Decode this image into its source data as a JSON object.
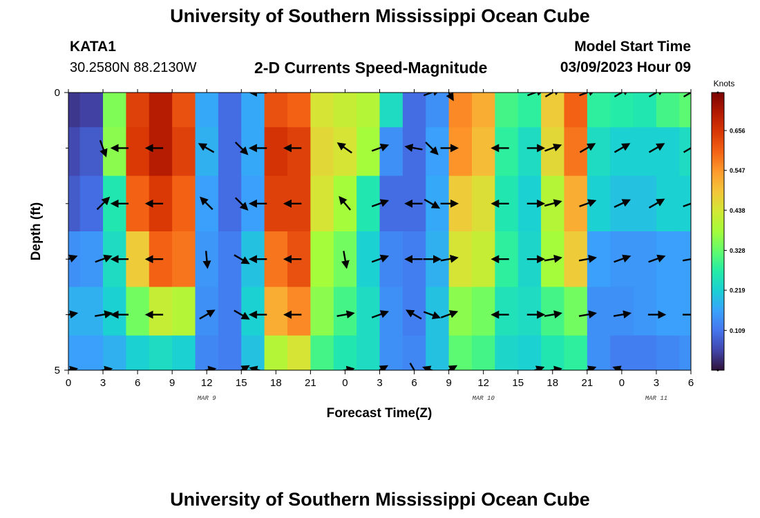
{
  "header": {
    "title": "University of Southern Mississippi Ocean Cube",
    "station": "KATA1",
    "coords": "30.2580N  88.2130W",
    "subtitle": "2-D Currents Speed-Magnitude",
    "model_start_label": "Model Start Time",
    "model_start_value": "03/09/2023 Hour 09"
  },
  "footer": {
    "title": "University of Southern Mississippi Ocean Cube"
  },
  "colors": {
    "ramp": [
      "#30123b",
      "#4145ab",
      "#4675ed",
      "#39a2fc",
      "#1bcfd4",
      "#24eca6",
      "#61fc6c",
      "#a4fc3b",
      "#d1e834",
      "#f3c63a",
      "#fe9b2d",
      "#f36315",
      "#d93806",
      "#b11901",
      "#7a0403"
    ],
    "arrow": "#000000",
    "axis": "#000000"
  },
  "chart_data": {
    "type": "heatmap",
    "title": "2-D Currents Speed-Magnitude",
    "xlabel": "Forecast Time(Z)",
    "ylabel": "Depth (ft)",
    "colorbar_label": "Knots",
    "colorbar_ticks": [
      "0.109",
      "0.219",
      "0.328",
      "0.438",
      "0.547",
      "0.656"
    ],
    "colorbar_range": [
      0,
      0.76
    ],
    "xlim": [
      0,
      54
    ],
    "ylim": [
      0,
      5
    ],
    "x_ticks": [
      0,
      3,
      6,
      9,
      12,
      15,
      18,
      21,
      24,
      27,
      30,
      33,
      36,
      39,
      42,
      45,
      48,
      51,
      54
    ],
    "x_tick_labels": [
      "0",
      "3",
      "6",
      "9",
      "12",
      "15",
      "18",
      "21",
      "0",
      "3",
      "6",
      "9",
      "12",
      "15",
      "18",
      "21",
      "0",
      "3",
      "6"
    ],
    "y_tick_labels": [
      {
        "value": 0,
        "label": "0"
      },
      {
        "value": 5,
        "label": "5"
      }
    ],
    "y_minor_ticks": [
      1,
      2,
      3,
      4
    ],
    "date_labels": [
      {
        "x": 12,
        "label": "MAR 9"
      },
      {
        "x": 36,
        "label": "MAR 10"
      },
      {
        "x": 51,
        "label": "MAR 11"
      }
    ],
    "depth_rows": [
      0.25,
      1,
      2,
      3,
      4,
      4.75
    ],
    "time_columns": [
      0,
      2,
      4,
      6,
      8,
      10,
      12,
      14,
      16,
      18,
      20,
      22,
      24,
      26,
      28,
      30,
      32,
      34,
      36,
      38,
      40,
      42,
      44,
      46,
      48,
      50,
      52,
      54
    ],
    "speed_knots": [
      [
        0.04,
        0.05,
        0.35,
        0.64,
        0.7,
        0.62,
        0.17,
        0.1,
        0.17,
        0.62,
        0.6,
        0.44,
        0.42,
        0.4,
        0.24,
        0.1,
        0.14,
        0.56,
        0.52,
        0.3,
        0.28,
        0.48,
        0.6,
        0.28,
        0.27,
        0.26,
        0.3,
        0.32
      ],
      [
        0.06,
        0.08,
        0.36,
        0.65,
        0.7,
        0.64,
        0.18,
        0.1,
        0.17,
        0.66,
        0.64,
        0.46,
        0.44,
        0.38,
        0.14,
        0.1,
        0.16,
        0.55,
        0.5,
        0.28,
        0.24,
        0.46,
        0.58,
        0.24,
        0.22,
        0.22,
        0.22,
        0.24
      ],
      [
        0.08,
        0.1,
        0.26,
        0.6,
        0.65,
        0.6,
        0.16,
        0.1,
        0.16,
        0.64,
        0.64,
        0.44,
        0.38,
        0.26,
        0.1,
        0.1,
        0.17,
        0.48,
        0.45,
        0.26,
        0.22,
        0.4,
        0.52,
        0.22,
        0.2,
        0.2,
        0.22,
        0.22
      ],
      [
        0.14,
        0.15,
        0.24,
        0.48,
        0.6,
        0.58,
        0.15,
        0.12,
        0.2,
        0.58,
        0.62,
        0.38,
        0.34,
        0.22,
        0.13,
        0.12,
        0.18,
        0.44,
        0.42,
        0.28,
        0.23,
        0.38,
        0.48,
        0.16,
        0.15,
        0.15,
        0.16,
        0.16
      ],
      [
        0.18,
        0.18,
        0.22,
        0.34,
        0.42,
        0.4,
        0.14,
        0.12,
        0.22,
        0.52,
        0.56,
        0.36,
        0.3,
        0.24,
        0.14,
        0.12,
        0.2,
        0.36,
        0.34,
        0.25,
        0.24,
        0.3,
        0.34,
        0.14,
        0.14,
        0.15,
        0.16,
        0.16
      ],
      [
        0.16,
        0.16,
        0.18,
        0.22,
        0.24,
        0.22,
        0.13,
        0.12,
        0.2,
        0.4,
        0.44,
        0.3,
        0.26,
        0.24,
        0.14,
        0.13,
        0.2,
        0.32,
        0.3,
        0.23,
        0.22,
        0.26,
        0.28,
        0.14,
        0.12,
        0.12,
        0.13,
        0.14
      ]
    ],
    "vector_times": [
      0,
      3,
      4.5,
      7.5,
      12,
      15,
      16.5,
      19.5,
      24,
      27,
      30,
      31.5,
      33,
      37.5,
      40.5,
      42,
      45,
      48,
      51,
      54
    ],
    "vector_depths": [
      0,
      1,
      2,
      3,
      4,
      5
    ],
    "vector_angles_deg": [
      [
        null,
        null,
        null,
        null,
        null,
        null,
        180,
        null,
        null,
        null,
        null,
        20,
        -60,
        null,
        20,
        30,
        20,
        30,
        30,
        30
      ],
      [
        null,
        -70,
        180,
        180,
        150,
        -45,
        180,
        180,
        145,
        20,
        170,
        -45,
        0,
        180,
        0,
        20,
        30,
        30,
        30,
        30
      ],
      [
        null,
        45,
        180,
        180,
        135,
        -45,
        180,
        180,
        130,
        20,
        180,
        -30,
        0,
        180,
        0,
        15,
        20,
        25,
        30,
        20
      ],
      [
        20,
        20,
        180,
        180,
        -85,
        -30,
        180,
        180,
        -80,
        20,
        180,
        0,
        10,
        180,
        0,
        10,
        10,
        20,
        20,
        10
      ],
      [
        10,
        10,
        180,
        180,
        30,
        -30,
        180,
        180,
        10,
        20,
        150,
        -20,
        20,
        180,
        0,
        10,
        10,
        10,
        0,
        0
      ],
      [
        10,
        10,
        null,
        null,
        10,
        30,
        165,
        null,
        10,
        30,
        -60,
        160,
        30,
        null,
        20,
        10,
        20,
        160,
        null,
        null
      ]
    ]
  }
}
